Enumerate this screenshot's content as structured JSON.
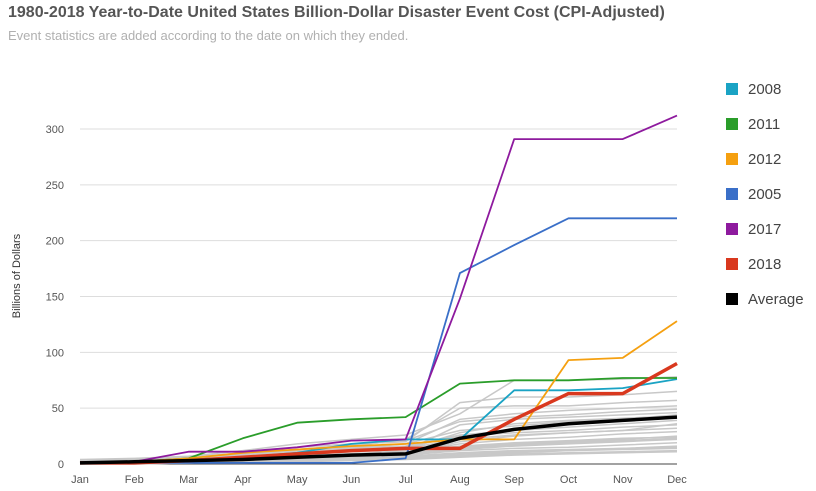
{
  "chart_data": {
    "type": "line",
    "title": "1980-2018 Year-to-Date United States Billion-Dollar Disaster Event Cost (CPI-Adjusted)",
    "subtitle": "Event statistics are added according to the date on which they ended.",
    "xlabel": "",
    "ylabel": "Billions of Dollars",
    "categories": [
      "Jan",
      "Feb",
      "Mar",
      "Apr",
      "May",
      "Jun",
      "Jul",
      "Aug",
      "Sep",
      "Oct",
      "Nov",
      "Dec"
    ],
    "ylim": [
      0,
      320
    ],
    "yticks": [
      0,
      50,
      100,
      150,
      200,
      250,
      300
    ],
    "grid": true,
    "legend_position": "right",
    "series": [
      {
        "name": "2008",
        "color": "#1aa3c4",
        "values": [
          1,
          2,
          4,
          6,
          10,
          18,
          22,
          22,
          66,
          66,
          68,
          76
        ]
      },
      {
        "name": "2011",
        "color": "#2a9d2a",
        "values": [
          1,
          2,
          5,
          23,
          37,
          40,
          42,
          72,
          75,
          75,
          77,
          77
        ]
      },
      {
        "name": "2012",
        "color": "#f5a010",
        "values": [
          1,
          2,
          5,
          10,
          13,
          16,
          18,
          22,
          22,
          93,
          95,
          128
        ]
      },
      {
        "name": "2005",
        "color": "#3a6fc8",
        "values": [
          1,
          1,
          1,
          1,
          1,
          1,
          5,
          171,
          196,
          220,
          220,
          220
        ]
      },
      {
        "name": "2017",
        "color": "#8e1a9e",
        "values": [
          1,
          2,
          11,
          11,
          15,
          21,
          22,
          148,
          291,
          291,
          291,
          312
        ]
      },
      {
        "name": "2018",
        "color": "#d9381e",
        "values": [
          1,
          1,
          3,
          6,
          9,
          12,
          14,
          14,
          40,
          63,
          63,
          90
        ]
      },
      {
        "name": "Average",
        "color": "#000000",
        "values": [
          1,
          2,
          3,
          4,
          6,
          8,
          9,
          23,
          31,
          36,
          39,
          42
        ]
      }
    ],
    "background_series": [
      {
        "values": [
          0,
          1,
          1,
          2,
          3,
          4,
          5,
          8,
          10,
          12,
          14,
          16
        ]
      },
      {
        "values": [
          1,
          2,
          3,
          4,
          6,
          8,
          10,
          15,
          18,
          20,
          22,
          25
        ]
      },
      {
        "values": [
          0,
          0,
          1,
          2,
          4,
          6,
          8,
          12,
          14,
          15,
          17,
          19
        ]
      },
      {
        "values": [
          1,
          2,
          4,
          6,
          9,
          12,
          15,
          25,
          28,
          30,
          33,
          35
        ]
      },
      {
        "values": [
          2,
          3,
          5,
          8,
          12,
          15,
          18,
          40,
          45,
          48,
          50,
          52
        ]
      },
      {
        "values": [
          1,
          1,
          2,
          3,
          5,
          7,
          9,
          20,
          25,
          28,
          30,
          32
        ]
      },
      {
        "values": [
          0,
          1,
          2,
          3,
          4,
          5,
          7,
          10,
          12,
          13,
          14,
          15
        ]
      },
      {
        "values": [
          3,
          4,
          6,
          10,
          15,
          18,
          20,
          55,
          60,
          60,
          62,
          65
        ]
      },
      {
        "values": [
          2,
          3,
          5,
          8,
          12,
          16,
          22,
          50,
          52,
          52,
          55,
          57
        ]
      },
      {
        "values": [
          1,
          2,
          3,
          5,
          7,
          9,
          12,
          35,
          40,
          42,
          44,
          46
        ]
      },
      {
        "values": [
          0,
          0,
          1,
          1,
          2,
          3,
          4,
          6,
          8,
          9,
          10,
          11
        ]
      },
      {
        "values": [
          1,
          2,
          3,
          6,
          10,
          14,
          18,
          30,
          34,
          38,
          40,
          44
        ]
      },
      {
        "values": [
          4,
          5,
          7,
          12,
          18,
          22,
          26,
          45,
          75,
          75,
          76,
          78
        ]
      },
      {
        "values": [
          2,
          3,
          4,
          6,
          9,
          12,
          14,
          22,
          26,
          28,
          30,
          36
        ]
      },
      {
        "values": [
          0,
          1,
          1,
          2,
          3,
          5,
          6,
          9,
          11,
          12,
          13,
          14
        ]
      },
      {
        "values": [
          1,
          1,
          2,
          4,
          6,
          8,
          10,
          18,
          22,
          24,
          27,
          29
        ]
      },
      {
        "values": [
          3,
          4,
          5,
          9,
          13,
          17,
          21,
          38,
          42,
          44,
          47,
          49
        ]
      },
      {
        "values": [
          1,
          2,
          4,
          7,
          11,
          14,
          16,
          26,
          30,
          33,
          36,
          39
        ]
      },
      {
        "values": [
          2,
          3,
          4,
          5,
          7,
          9,
          11,
          16,
          19,
          21,
          23,
          24
        ]
      },
      {
        "values": [
          0,
          1,
          2,
          3,
          5,
          6,
          8,
          13,
          16,
          18,
          20,
          22
        ]
      },
      {
        "values": [
          1,
          2,
          3,
          5,
          8,
          11,
          13,
          28,
          36,
          39,
          41,
          43
        ]
      },
      {
        "values": [
          2,
          2,
          3,
          4,
          6,
          7,
          9,
          14,
          17,
          19,
          21,
          23
        ]
      },
      {
        "values": [
          1,
          1,
          2,
          2,
          3,
          4,
          5,
          7,
          9,
          10,
          11,
          12
        ]
      }
    ]
  }
}
